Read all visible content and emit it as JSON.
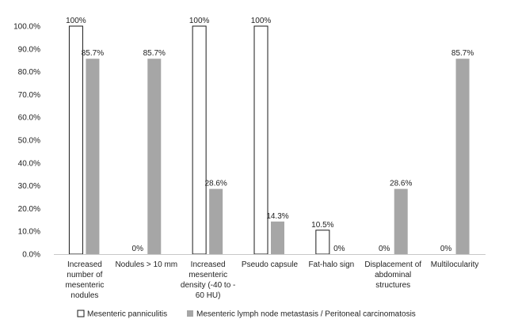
{
  "chart_data": {
    "type": "bar",
    "title": "",
    "xlabel": "",
    "ylabel": "",
    "ylim": [
      0,
      100
    ],
    "y_ticks": [
      "0.0%",
      "10.0%",
      "20.0%",
      "30.0%",
      "40.0%",
      "50.0%",
      "60.0%",
      "70.0%",
      "80.0%",
      "90.0%",
      "100.0%"
    ],
    "categories": [
      [
        "Increased",
        "number of",
        "mesenteric",
        "nodules"
      ],
      [
        "Nodules > 10 mm"
      ],
      [
        "Increased",
        "mesenteric",
        "density (-40 to -",
        "60 HU)"
      ],
      [
        "Pseudo capsule"
      ],
      [
        "Fat-halo sign"
      ],
      [
        "Displacement of",
        "abdominal",
        "structures"
      ],
      [
        "Multilocularity"
      ]
    ],
    "series": [
      {
        "name": "Mesenteric panniculitis",
        "values": [
          100,
          0,
          100,
          100,
          10.5,
          0,
          0
        ],
        "labels": [
          "100%",
          "0%",
          "100%",
          "100%",
          "10.5%",
          "0%",
          "0%"
        ],
        "fill": "#ffffff",
        "stroke": "#1a1a1a"
      },
      {
        "name": "Mesenteric lymph node metastasis / Peritoneal carcinomatosis",
        "values": [
          85.7,
          85.7,
          28.6,
          14.3,
          0,
          28.6,
          85.7
        ],
        "labels": [
          "85.7%",
          "85.7%",
          "28.6%",
          "14.3%",
          "0%",
          "28.6%",
          "85.7%"
        ],
        "fill": "#a6a6a6",
        "stroke": "none"
      }
    ],
    "grid": false,
    "legend_position": "bottom"
  }
}
